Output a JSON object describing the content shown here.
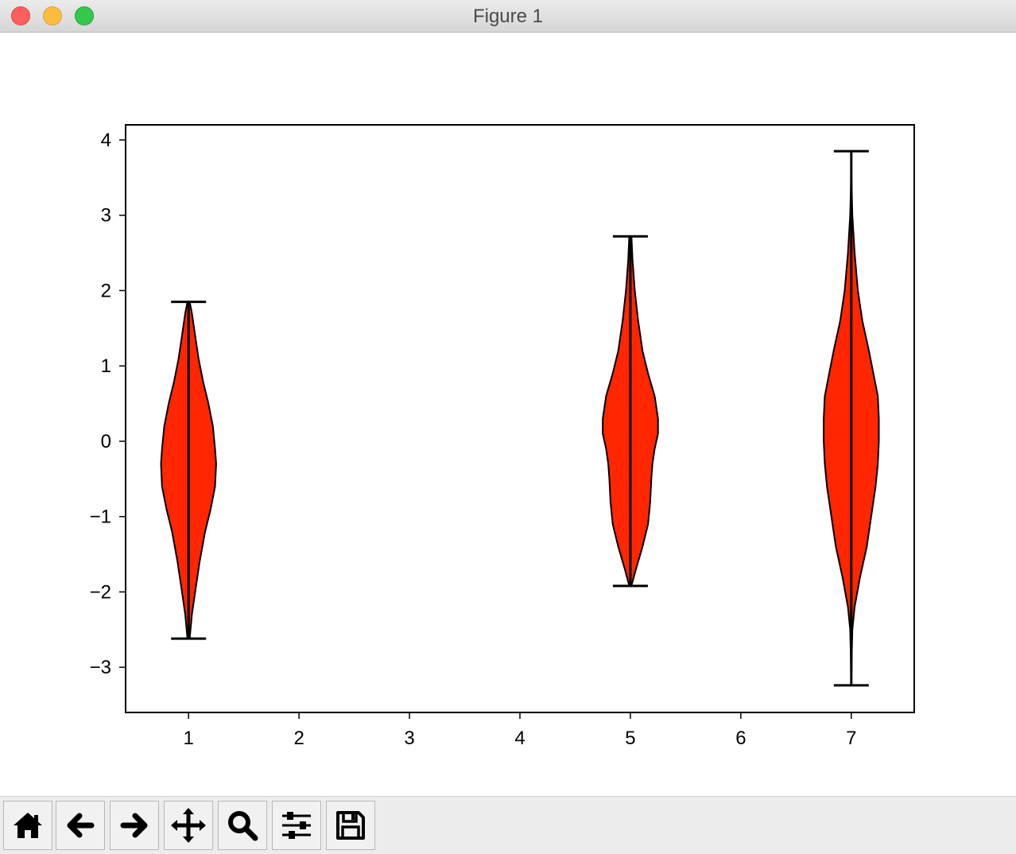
{
  "window": {
    "title": "Figure 1"
  },
  "chart_data": {
    "type": "violin",
    "title": "",
    "xlabel": "",
    "ylabel": "",
    "xlim": [
      0.43,
      7.57
    ],
    "ylim": [
      -3.6,
      4.2
    ],
    "xticks": [
      "1",
      "2",
      "3",
      "4",
      "5",
      "6",
      "7"
    ],
    "yticks": [
      "4",
      "3",
      "2",
      "1",
      "0",
      "−1",
      "−2",
      "−3"
    ],
    "fill_color": "#ff2600",
    "edge_color": "#000000",
    "violins": [
      {
        "position": 1,
        "min": -2.62,
        "max": 1.85,
        "profile": [
          [
            -2.62,
            0.01
          ],
          [
            -2.3,
            0.03
          ],
          [
            -2.0,
            0.06
          ],
          [
            -1.6,
            0.1
          ],
          [
            -1.2,
            0.15
          ],
          [
            -0.9,
            0.2
          ],
          [
            -0.6,
            0.24
          ],
          [
            -0.3,
            0.25
          ],
          [
            -0.1,
            0.24
          ],
          [
            0.2,
            0.22
          ],
          [
            0.5,
            0.18
          ],
          [
            0.8,
            0.13
          ],
          [
            1.1,
            0.09
          ],
          [
            1.4,
            0.06
          ],
          [
            1.7,
            0.03
          ],
          [
            1.85,
            0.01
          ]
        ]
      },
      {
        "position": 5,
        "min": -1.92,
        "max": 2.72,
        "profile": [
          [
            -1.92,
            0.01
          ],
          [
            -1.7,
            0.05
          ],
          [
            -1.4,
            0.11
          ],
          [
            -1.1,
            0.16
          ],
          [
            -0.8,
            0.18
          ],
          [
            -0.5,
            0.19
          ],
          [
            -0.3,
            0.2
          ],
          [
            -0.1,
            0.22
          ],
          [
            0.1,
            0.25
          ],
          [
            0.3,
            0.25
          ],
          [
            0.6,
            0.22
          ],
          [
            0.9,
            0.16
          ],
          [
            1.2,
            0.11
          ],
          [
            1.6,
            0.07
          ],
          [
            2.0,
            0.04
          ],
          [
            2.4,
            0.02
          ],
          [
            2.72,
            0.01
          ]
        ]
      },
      {
        "position": 7,
        "min": -3.24,
        "max": 3.85,
        "profile": [
          [
            -3.24,
            0.0
          ],
          [
            -2.8,
            0.005
          ],
          [
            -2.5,
            0.01
          ],
          [
            -2.2,
            0.03
          ],
          [
            -1.8,
            0.08
          ],
          [
            -1.4,
            0.14
          ],
          [
            -1.0,
            0.18
          ],
          [
            -0.6,
            0.22
          ],
          [
            -0.3,
            0.24
          ],
          [
            0.0,
            0.25
          ],
          [
            0.3,
            0.25
          ],
          [
            0.6,
            0.24
          ],
          [
            0.9,
            0.2
          ],
          [
            1.2,
            0.16
          ],
          [
            1.6,
            0.1
          ],
          [
            2.0,
            0.06
          ],
          [
            2.5,
            0.03
          ],
          [
            3.0,
            0.01
          ],
          [
            3.4,
            0.003
          ],
          [
            3.85,
            0.0
          ]
        ]
      }
    ]
  },
  "toolbar": {
    "buttons": [
      {
        "name": "home-button",
        "icon": "home-icon"
      },
      {
        "name": "back-button",
        "icon": "arrow-left-icon"
      },
      {
        "name": "forward-button",
        "icon": "arrow-right-icon"
      },
      {
        "name": "pan-button",
        "icon": "move-icon"
      },
      {
        "name": "zoom-button",
        "icon": "magnifier-icon"
      },
      {
        "name": "configure-subplots-button",
        "icon": "sliders-icon"
      },
      {
        "name": "save-button",
        "icon": "floppy-disk-icon"
      }
    ]
  }
}
